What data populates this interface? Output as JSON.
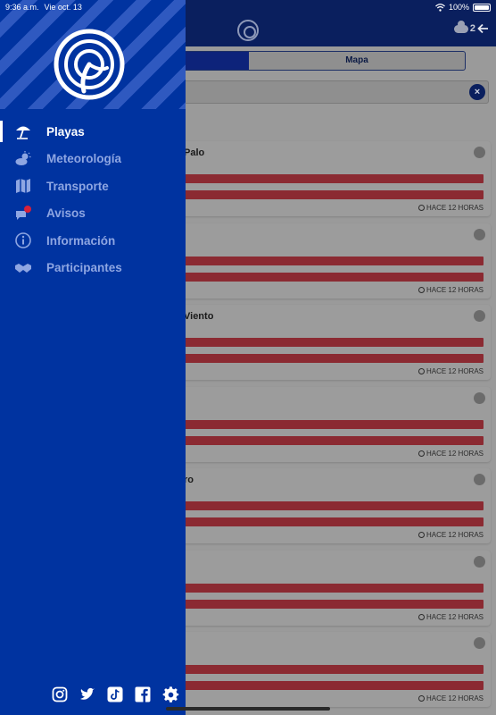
{
  "status_bar": {
    "time": "9:36 a.m.",
    "date": "Vie oct. 13",
    "battery": "100%"
  },
  "header": {
    "weather_value": "2"
  },
  "tabs": {
    "map_label": "Mapa"
  },
  "search": {
    "clear_label": "×"
  },
  "beaches": [
    {
      "name": "Palo",
      "updated": "HACE 12 HORAS"
    },
    {
      "name": "",
      "updated": "HACE 12 HORAS"
    },
    {
      "name": "Viento",
      "updated": "HACE 12 HORAS"
    },
    {
      "name": "",
      "updated": "HACE 12 HORAS"
    },
    {
      "name": "ro",
      "updated": "HACE 12 HORAS"
    },
    {
      "name": "",
      "updated": "HACE 12 HORAS"
    },
    {
      "name": "",
      "updated": "HACE 12 HORAS"
    }
  ],
  "drawer": {
    "menu": [
      {
        "label": "Playas",
        "icon": "beach-umbrella-icon",
        "active": true
      },
      {
        "label": "Meteorología",
        "icon": "sun-cloud-icon",
        "active": false
      },
      {
        "label": "Transporte",
        "icon": "map-icon",
        "active": false
      },
      {
        "label": "Avisos",
        "icon": "chat-alert-icon",
        "active": false
      },
      {
        "label": "Información",
        "icon": "info-icon",
        "active": false
      },
      {
        "label": "Participantes",
        "icon": "handshake-icon",
        "active": false
      }
    ],
    "social": [
      "instagram-icon",
      "twitter-icon",
      "tiktok-icon",
      "facebook-icon",
      "gear-icon"
    ]
  },
  "colors": {
    "drawer_bg": "#0033a0",
    "menu_active": "#ffffff",
    "menu_inactive": "#8ea6e2",
    "alert_red": "#d8213a",
    "bar_red": "#8b2a32"
  }
}
